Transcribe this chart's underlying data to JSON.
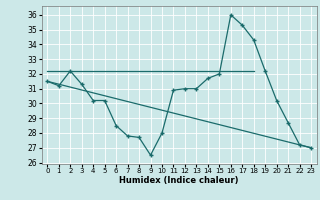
{
  "xlabel": "Humidex (Indice chaleur)",
  "bg_color": "#cce8e8",
  "grid_color": "#ffffff",
  "line_color": "#1a6b6b",
  "xlim": [
    -0.5,
    23.5
  ],
  "ylim": [
    25.9,
    36.6
  ],
  "yticks": [
    26,
    27,
    28,
    29,
    30,
    31,
    32,
    33,
    34,
    35,
    36
  ],
  "xticks": [
    0,
    1,
    2,
    3,
    4,
    5,
    6,
    7,
    8,
    9,
    10,
    11,
    12,
    13,
    14,
    15,
    16,
    17,
    18,
    19,
    20,
    21,
    22,
    23
  ],
  "line1_x": [
    0,
    1,
    2,
    3,
    4,
    5,
    6,
    7,
    8,
    9,
    10,
    11,
    12,
    13,
    14,
    15,
    16,
    17,
    18,
    19,
    20,
    21,
    22,
    23
  ],
  "line1_y": [
    31.5,
    31.2,
    32.2,
    31.3,
    30.2,
    30.2,
    28.5,
    27.8,
    27.7,
    26.5,
    28.0,
    30.9,
    31.0,
    31.0,
    31.7,
    32.0,
    36.0,
    35.3,
    34.3,
    32.2,
    30.2,
    28.7,
    27.2,
    27.0
  ],
  "line2_x": [
    0,
    18
  ],
  "line2_y": [
    32.2,
    32.2
  ],
  "line3_x": [
    0,
    23
  ],
  "line3_y": [
    31.5,
    27.0
  ]
}
